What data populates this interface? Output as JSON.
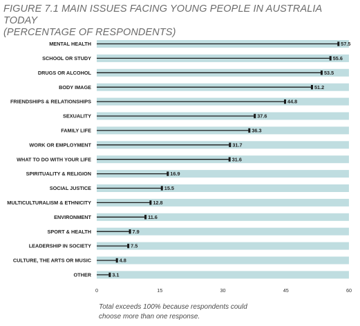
{
  "title": {
    "line1": "FIGURE 7.1 MAIN ISSUES FACING YOUNG PEOPLE IN AUSTRALIA TODAY",
    "line2": "(PERCENTAGE OF RESPONDENTS)"
  },
  "footnote": {
    "line1": "Total exceeds 100% because respondents could",
    "line2": "choose more than one response."
  },
  "colors": {
    "track": "#bfdde0",
    "bar": "#1a1a1a"
  },
  "chart_data": {
    "type": "bar",
    "orientation": "horizontal",
    "categories": [
      "MENTAL HEALTH",
      "SCHOOL OR STUDY",
      "DRUGS OR ALCOHOL",
      "BODY IMAGE",
      "FRIENDSHIPS & RELATIONSHIPS",
      "SEXUALITY",
      "FAMILY LIFE",
      "WORK OR EMPLOYMENT",
      "WHAT TO DO WITH YOUR LIFE",
      "SPIRITUALITY & RELIGION",
      "SOCIAL JUSTICE",
      "MULTICULTURALISM & ETHNICITY",
      "ENVIRONMENT",
      "SPORT & HEALTH",
      "LEADERSHIP IN SOCIETY",
      "CULTURE, THE ARTS OR MUSIC",
      "OTHER"
    ],
    "values": [
      57.5,
      55.6,
      53.5,
      51.2,
      44.8,
      37.6,
      36.3,
      31.7,
      31.6,
      16.9,
      15.5,
      12.8,
      11.6,
      7.9,
      7.5,
      4.8,
      3.1
    ],
    "value_labels": [
      "57.5",
      "55.6",
      "53.5",
      "51.2",
      "44.8",
      "37.6",
      "36.3",
      "31.7",
      "31.6",
      "16.9",
      "15.5",
      "12.8",
      "11.6",
      "7.9",
      "7.5",
      "4.8",
      "3.1"
    ],
    "xlim": [
      0,
      60
    ],
    "xticks": [
      0,
      15,
      30,
      45,
      60
    ],
    "xtick_labels": [
      "0",
      "15",
      "30",
      "45",
      "60"
    ],
    "title": "FIGURE 7.1 MAIN ISSUES FACING YOUNG PEOPLE IN AUSTRALIA TODAY (PERCENTAGE OF RESPONDENTS)",
    "xlabel": "",
    "ylabel": "",
    "grid": false,
    "legend": "none"
  }
}
